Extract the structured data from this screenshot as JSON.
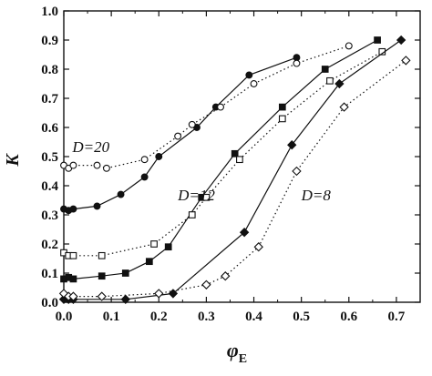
{
  "chart_data": {
    "type": "scatter",
    "title": "",
    "xlabel": "φ",
    "xlabel_sub": "E",
    "ylabel": "K",
    "xlim": [
      0.0,
      0.75
    ],
    "ylim": [
      0.0,
      1.0
    ],
    "x_ticks": [
      "0.0",
      "0.1",
      "0.2",
      "0.3",
      "0.4",
      "0.5",
      "0.6",
      "0.7"
    ],
    "y_ticks": [
      "0.0",
      "0.1",
      "0.2",
      "0.3",
      "0.4",
      "0.5",
      "0.6",
      "0.7",
      "0.8",
      "0.9",
      "1.0"
    ],
    "grid": false,
    "annotations": [
      {
        "text": "D=20",
        "x": 0.018,
        "y": 0.515
      },
      {
        "text": "D=12",
        "x": 0.24,
        "y": 0.35
      },
      {
        "text": "D=8",
        "x": 0.5,
        "y": 0.35
      }
    ],
    "series": [
      {
        "group": "D=20",
        "marker": "circle",
        "filled": true,
        "line": "solid",
        "x": [
          0.0,
          0.01,
          0.02,
          0.07,
          0.12,
          0.17,
          0.2,
          0.28,
          0.32,
          0.39,
          0.49
        ],
        "y": [
          0.32,
          0.315,
          0.32,
          0.33,
          0.37,
          0.43,
          0.5,
          0.6,
          0.67,
          0.78,
          0.84
        ]
      },
      {
        "group": "D=20",
        "marker": "circle",
        "filled": false,
        "line": "dotted",
        "x": [
          0.0,
          0.01,
          0.02,
          0.07,
          0.09,
          0.17,
          0.24,
          0.27,
          0.33,
          0.4,
          0.49,
          0.6
        ],
        "y": [
          0.47,
          0.46,
          0.47,
          0.47,
          0.46,
          0.49,
          0.57,
          0.61,
          0.67,
          0.75,
          0.82,
          0.88
        ]
      },
      {
        "group": "D=12",
        "marker": "square",
        "filled": true,
        "line": "solid",
        "x": [
          0.0,
          0.01,
          0.02,
          0.08,
          0.13,
          0.18,
          0.22,
          0.29,
          0.36,
          0.46,
          0.55,
          0.66
        ],
        "y": [
          0.08,
          0.085,
          0.08,
          0.09,
          0.1,
          0.14,
          0.19,
          0.36,
          0.51,
          0.67,
          0.8,
          0.9
        ]
      },
      {
        "group": "D=12",
        "marker": "square",
        "filled": false,
        "line": "dotted",
        "x": [
          0.0,
          0.01,
          0.02,
          0.08,
          0.19,
          0.27,
          0.3,
          0.37,
          0.46,
          0.56,
          0.67
        ],
        "y": [
          0.17,
          0.16,
          0.16,
          0.16,
          0.2,
          0.3,
          0.36,
          0.49,
          0.63,
          0.76,
          0.86
        ]
      },
      {
        "group": "D=8",
        "marker": "diamond",
        "filled": true,
        "line": "solid",
        "x": [
          0.0,
          0.01,
          0.02,
          0.13,
          0.23,
          0.38,
          0.48,
          0.58,
          0.71
        ],
        "y": [
          0.01,
          0.01,
          0.01,
          0.01,
          0.03,
          0.24,
          0.54,
          0.75,
          0.9
        ]
      },
      {
        "group": "D=8",
        "marker": "diamond",
        "filled": false,
        "line": "dotted",
        "x": [
          0.0,
          0.01,
          0.02,
          0.08,
          0.2,
          0.3,
          0.34,
          0.41,
          0.49,
          0.59,
          0.72
        ],
        "y": [
          0.03,
          0.02,
          0.02,
          0.02,
          0.03,
          0.06,
          0.09,
          0.19,
          0.45,
          0.67,
          0.83
        ]
      }
    ]
  }
}
